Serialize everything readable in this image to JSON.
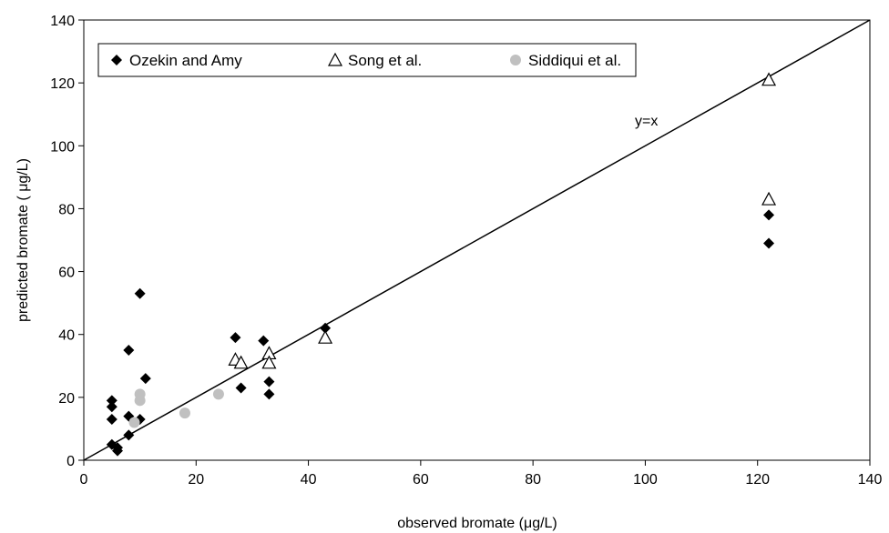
{
  "chart_data": {
    "type": "scatter",
    "title": "",
    "xlabel": "observed bromate (μg/L)",
    "ylabel": "predicted bromate ( μg/L)",
    "xlim": [
      0,
      140
    ],
    "ylim": [
      0,
      140
    ],
    "xticks": [
      0,
      20,
      40,
      60,
      80,
      100,
      120,
      140
    ],
    "yticks": [
      0,
      20,
      40,
      60,
      80,
      100,
      120,
      140
    ],
    "grid": false,
    "legend_position": "top-left",
    "series": [
      {
        "name": "Ozekin and Amy",
        "marker": "diamond",
        "color": "#000000",
        "points": [
          [
            10,
            53
          ],
          [
            8,
            35
          ],
          [
            11,
            26
          ],
          [
            5,
            19
          ],
          [
            5,
            17
          ],
          [
            5,
            13
          ],
          [
            8,
            14
          ],
          [
            10,
            13
          ],
          [
            8,
            8
          ],
          [
            5,
            5
          ],
          [
            6,
            4
          ],
          [
            6,
            3
          ],
          [
            27,
            39
          ],
          [
            32,
            38
          ],
          [
            28,
            23
          ],
          [
            33,
            25
          ],
          [
            33,
            21
          ],
          [
            43,
            42
          ],
          [
            122,
            78
          ],
          [
            122,
            69
          ]
        ]
      },
      {
        "name": "Song et al.",
        "marker": "triangle-open",
        "color": "#000000",
        "points": [
          [
            27,
            32
          ],
          [
            28,
            31
          ],
          [
            33,
            34
          ],
          [
            33,
            31
          ],
          [
            43,
            39
          ],
          [
            122,
            121
          ],
          [
            122,
            83
          ]
        ]
      },
      {
        "name": "Siddiqui et al.",
        "marker": "circle",
        "color": "#c0c0c0",
        "points": [
          [
            10,
            21
          ],
          [
            10,
            19
          ],
          [
            9,
            12
          ],
          [
            18,
            15
          ],
          [
            24,
            21
          ]
        ]
      }
    ],
    "reference_line": {
      "label": "y=x",
      "from": [
        0,
        0
      ],
      "to": [
        140,
        140
      ]
    }
  }
}
